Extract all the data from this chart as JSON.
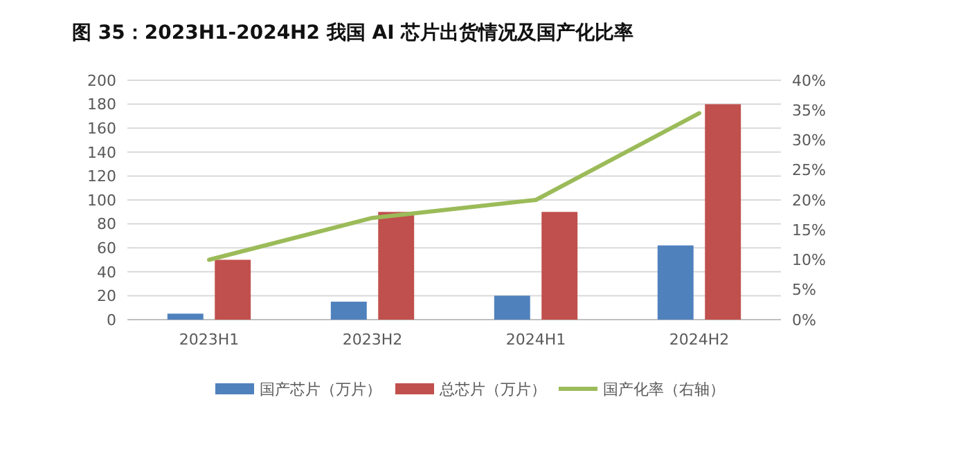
{
  "chart_data": {
    "type": "bar",
    "title": "图 35：2023H1-2024H2 我国 AI 芯片出货情况及国产化比率",
    "categories": [
      "2023H1",
      "2023H2",
      "2024H1",
      "2024H2"
    ],
    "series": [
      {
        "name": "国产芯片（万片）",
        "color": "#4f81bd",
        "values": [
          5,
          15,
          20,
          62
        ]
      },
      {
        "name": "总芯片（万片）",
        "color": "#c0504d",
        "values": [
          50,
          90,
          90,
          180
        ]
      },
      {
        "name": "国产化率（右轴）",
        "color": "#9bbb59",
        "type": "line",
        "axis": "y2",
        "values": [
          10,
          17,
          20,
          34.5
        ]
      }
    ],
    "ylim": [
      0,
      200
    ],
    "yticks": [
      0,
      20,
      40,
      60,
      80,
      100,
      120,
      140,
      160,
      180,
      200
    ],
    "y2lim": [
      0,
      40
    ],
    "y2ticks": [
      {
        "value": 0,
        "label": "0%"
      },
      {
        "value": 5,
        "label": "5%"
      },
      {
        "value": 10,
        "label": "10%"
      },
      {
        "value": 15,
        "label": "15%"
      },
      {
        "value": 20,
        "label": "20%"
      },
      {
        "value": 25,
        "label": "25%"
      },
      {
        "value": 30,
        "label": "30%"
      },
      {
        "value": 35,
        "label": "35%"
      },
      {
        "value": 40,
        "label": "40%"
      }
    ],
    "grid": "y",
    "legend": "bottom",
    "marker": "none"
  }
}
